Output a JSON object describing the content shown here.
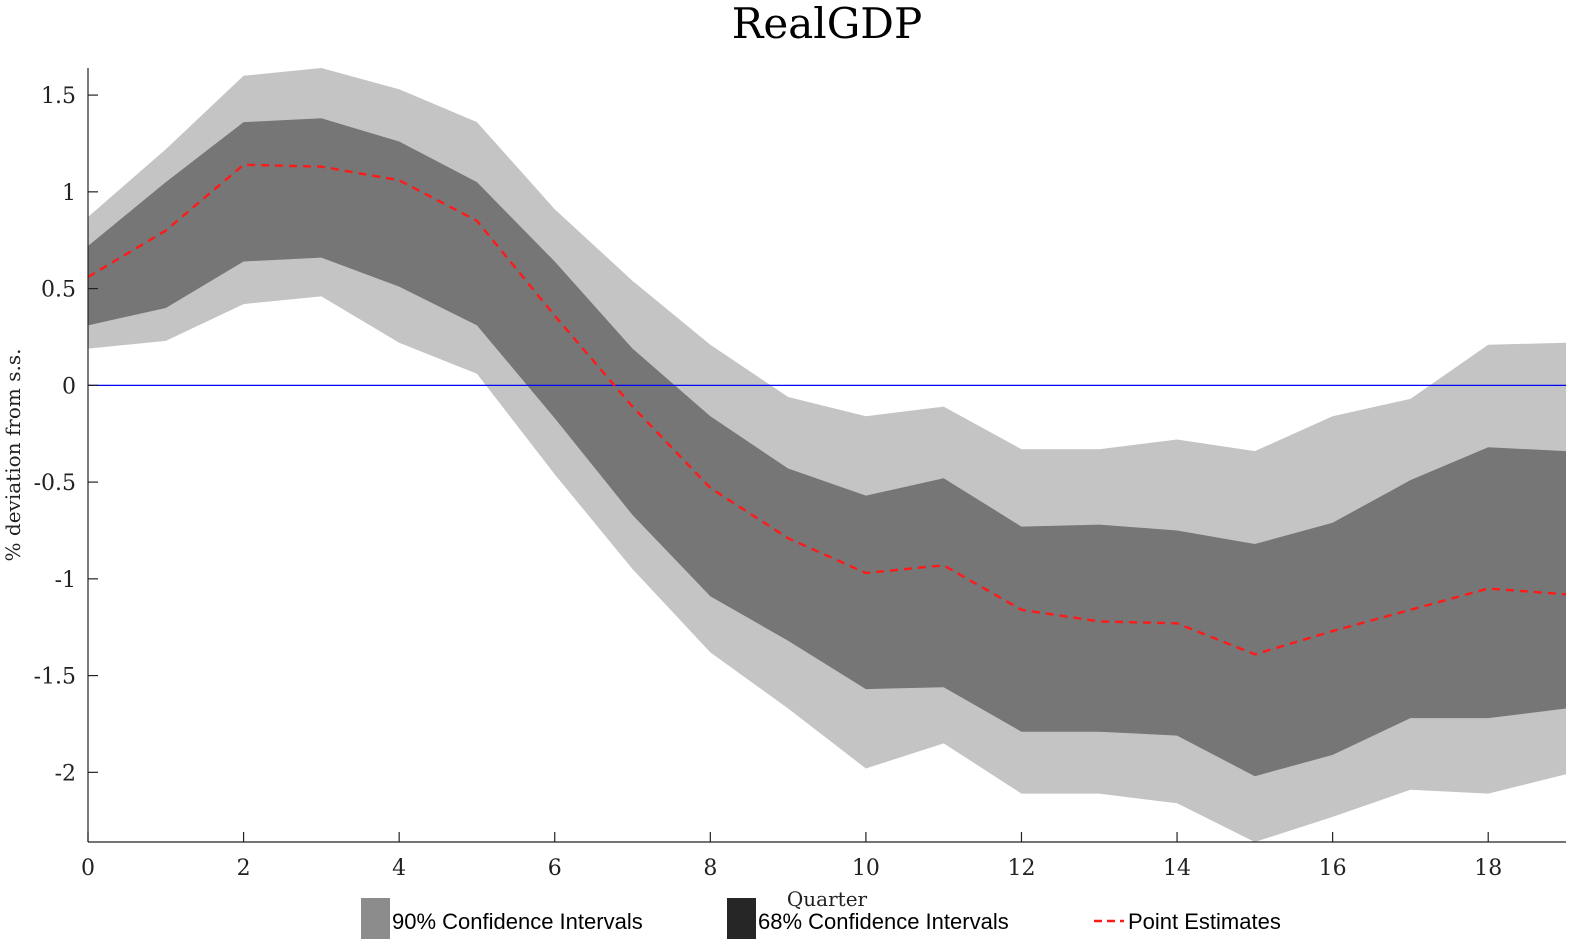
{
  "chart_data": {
    "type": "area",
    "title": "RealGDP",
    "xlabel": "Quarter",
    "ylabel": "% deviation from s.s.",
    "xlim": [
      0,
      19
    ],
    "ylim": [
      -2.36,
      1.64
    ],
    "x_ticks": [
      0,
      2,
      4,
      6,
      8,
      10,
      12,
      14,
      16,
      18
    ],
    "y_ticks": [
      1.5,
      1,
      0.5,
      0,
      -0.5,
      -1,
      -1.5,
      -2
    ],
    "y_tick_labels": [
      "1.5",
      "1",
      "0.5",
      "0",
      "-0.5",
      "-1",
      "-1.5",
      "-2"
    ],
    "grid": false,
    "legend_position": "bottom",
    "x": [
      0,
      1,
      2,
      3,
      4,
      5,
      6,
      7,
      8,
      9,
      10,
      11,
      12,
      13,
      14,
      15,
      16,
      17,
      18,
      19
    ],
    "zero_line": 0,
    "series": [
      {
        "name": "90% Confidence Intervals",
        "kind": "band",
        "color": "#c4c4c4",
        "legend_color": "#8c8c8c",
        "upper": [
          0.87,
          1.22,
          1.6,
          1.64,
          1.53,
          1.36,
          0.91,
          0.54,
          0.21,
          -0.06,
          -0.16,
          -0.11,
          -0.33,
          -0.33,
          -0.28,
          -0.34,
          -0.16,
          -0.07,
          0.21,
          0.22
        ],
        "lower": [
          0.19,
          0.23,
          0.42,
          0.46,
          0.22,
          0.06,
          -0.46,
          -0.95,
          -1.38,
          -1.67,
          -1.98,
          -1.85,
          -2.11,
          -2.11,
          -2.16,
          -2.36,
          -2.23,
          -2.09,
          -2.11,
          -2.01
        ]
      },
      {
        "name": "68% Confidence Intervals",
        "kind": "band",
        "color": "#767676",
        "legend_color": "#262626",
        "upper": [
          0.72,
          1.05,
          1.36,
          1.38,
          1.26,
          1.05,
          0.64,
          0.19,
          -0.16,
          -0.43,
          -0.57,
          -0.48,
          -0.73,
          -0.72,
          -0.75,
          -0.82,
          -0.71,
          -0.49,
          -0.32,
          -0.34
        ],
        "lower": [
          0.31,
          0.4,
          0.64,
          0.66,
          0.51,
          0.31,
          -0.17,
          -0.67,
          -1.09,
          -1.32,
          -1.57,
          -1.56,
          -1.79,
          -1.79,
          -1.81,
          -2.02,
          -1.91,
          -1.72,
          -1.72,
          -1.67
        ]
      },
      {
        "name": "Point Estimates",
        "kind": "line",
        "color": "#ff1a1a",
        "dash": "dashed",
        "values": [
          0.56,
          0.8,
          1.14,
          1.13,
          1.06,
          0.85,
          0.36,
          -0.11,
          -0.53,
          -0.79,
          -0.97,
          -0.93,
          -1.16,
          -1.22,
          -1.23,
          -1.39,
          -1.27,
          -1.16,
          -1.05,
          -1.08
        ]
      }
    ],
    "reference_line_color": "#0000ff"
  }
}
